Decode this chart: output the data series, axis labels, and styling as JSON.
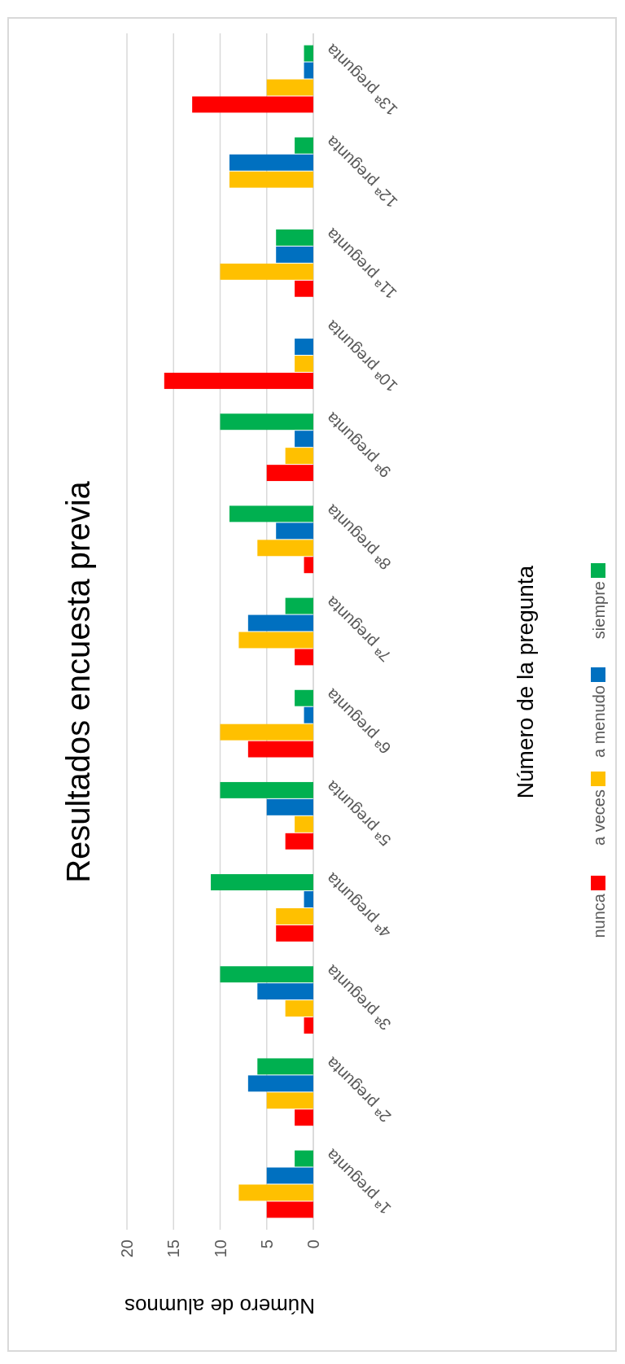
{
  "chart_data": {
    "type": "bar",
    "orientation": "horizontal",
    "title": "Resultados encuesta previa",
    "xlabel": "Número de alumnos",
    "ylabel": "Número de la pregunta",
    "categories": [
      "13ª pregunta",
      "12ª pregunta",
      "11ª pregunta",
      "10ª pregunta",
      "9ª pregunta",
      "8ª pregunta",
      "7ª pregunta",
      "6ª pregunta",
      "5ª pregunta",
      "4ª pregunta",
      "3ª pregunta",
      "2ª pregunta",
      "1ª pregunta"
    ],
    "series": [
      {
        "name": "siempre",
        "color": "#00b050",
        "values": [
          1,
          2,
          4,
          0,
          10,
          9,
          3,
          2,
          10,
          11,
          10,
          6,
          2
        ]
      },
      {
        "name": "a menudo",
        "color": "#0070c0",
        "values": [
          1,
          9,
          4,
          2,
          2,
          4,
          7,
          1,
          5,
          1,
          6,
          7,
          5
        ]
      },
      {
        "name": "a veces",
        "color": "#ffc000",
        "values": [
          5,
          9,
          10,
          2,
          3,
          6,
          8,
          10,
          2,
          4,
          3,
          5,
          8
        ]
      },
      {
        "name": "nunca",
        "color": "#ff0000",
        "values": [
          13,
          0,
          2,
          16,
          5,
          1,
          2,
          7,
          3,
          4,
          1,
          2,
          5
        ]
      }
    ],
    "xlim": [
      20,
      0
    ],
    "xticks": [
      0,
      5,
      10,
      15,
      20
    ],
    "grid": true,
    "legend": "right"
  }
}
